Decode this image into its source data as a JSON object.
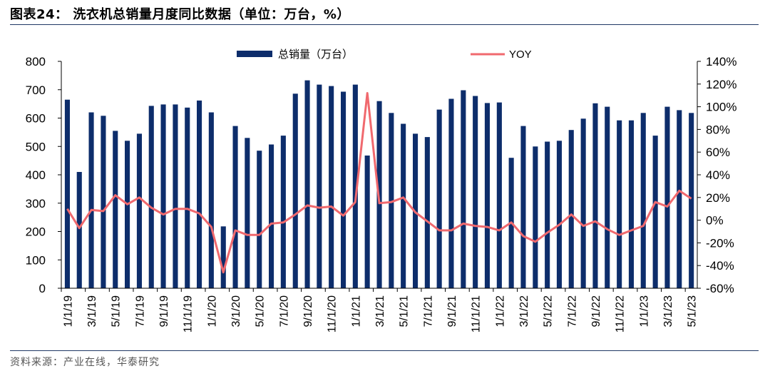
{
  "page": {
    "title": "图表24：  洗衣机总销量月度同比数据（单位：万台，%）",
    "source": "资料来源：产业在线，华泰研究"
  },
  "colors": {
    "bar": "#0d2d6b",
    "line": "#f0696e",
    "axis": "#000000",
    "rule": "#1f3864"
  },
  "chart_data": {
    "type": "bar",
    "grid": false,
    "legend_position": "top",
    "categories": [
      "1/1/19",
      "2/1/19",
      "3/1/19",
      "4/1/19",
      "5/1/19",
      "6/1/19",
      "7/1/19",
      "8/1/19",
      "9/1/19",
      "10/1/19",
      "11/1/19",
      "12/1/19",
      "1/1/20",
      "2/1/20",
      "3/1/20",
      "4/1/20",
      "5/1/20",
      "6/1/20",
      "7/1/20",
      "8/1/20",
      "9/1/20",
      "10/1/20",
      "11/1/20",
      "12/1/20",
      "1/1/21",
      "2/1/21",
      "3/1/21",
      "4/1/21",
      "5/1/21",
      "6/1/21",
      "7/1/21",
      "8/1/21",
      "9/1/21",
      "10/1/21",
      "11/1/21",
      "12/1/21",
      "1/1/22",
      "2/1/22",
      "3/1/22",
      "4/1/22",
      "5/1/22",
      "6/1/22",
      "7/1/22",
      "8/1/22",
      "9/1/22",
      "10/1/22",
      "11/1/22",
      "12/1/22",
      "1/1/23",
      "2/1/23",
      "3/1/23",
      "4/1/23",
      "5/1/23"
    ],
    "tick_labels": [
      "1/1/19",
      "3/1/19",
      "5/1/19",
      "7/1/19",
      "9/1/19",
      "11/1/19",
      "1/1/20",
      "3/1/20",
      "5/1/20",
      "7/1/20",
      "9/1/20",
      "11/1/20",
      "1/1/21",
      "3/1/21",
      "5/1/21",
      "7/1/21",
      "9/1/21",
      "11/1/21",
      "1/1/22",
      "3/1/22",
      "5/1/22",
      "7/1/22",
      "9/1/22",
      "11/1/22",
      "1/1/23",
      "3/1/23",
      "5/1/23"
    ],
    "series": [
      {
        "name": "总销量（万台）",
        "type": "bar",
        "axis": "left",
        "values": [
          665,
          410,
          620,
          608,
          555,
          520,
          545,
          643,
          648,
          648,
          637,
          662,
          620,
          218,
          572,
          530,
          485,
          507,
          538,
          686,
          733,
          718,
          713,
          693,
          718,
          468,
          660,
          618,
          580,
          545,
          533,
          630,
          668,
          698,
          678,
          653,
          655,
          460,
          572,
          500,
          517,
          520,
          558,
          598,
          652,
          640,
          592,
          592,
          618,
          538,
          640,
          628,
          618
        ]
      },
      {
        "name": "YOY",
        "type": "line",
        "axis": "right",
        "values": [
          10,
          -7,
          9,
          8,
          22,
          14,
          20,
          11,
          5,
          10,
          10,
          6,
          -6,
          -46,
          -9,
          -13,
          -13,
          -3,
          -2,
          5,
          13,
          11,
          12,
          4,
          16,
          112,
          15,
          16,
          20,
          7,
          -1,
          -9,
          -9,
          -3,
          -5,
          -6,
          -9,
          -2,
          -14,
          -19,
          -11,
          -4,
          5,
          -5,
          -1,
          -8,
          -13,
          -9,
          -5,
          16,
          12,
          26,
          19
        ]
      }
    ],
    "y_left": {
      "min": 0,
      "max": 800,
      "ticks": [
        "0",
        "100",
        "200",
        "300",
        "400",
        "500",
        "600",
        "700",
        "800"
      ]
    },
    "y_right": {
      "min": -60,
      "max": 140,
      "ticks": [
        "-60%",
        "-40%",
        "-20%",
        "0%",
        "20%",
        "40%",
        "60%",
        "80%",
        "100%",
        "120%",
        "140%"
      ]
    }
  }
}
